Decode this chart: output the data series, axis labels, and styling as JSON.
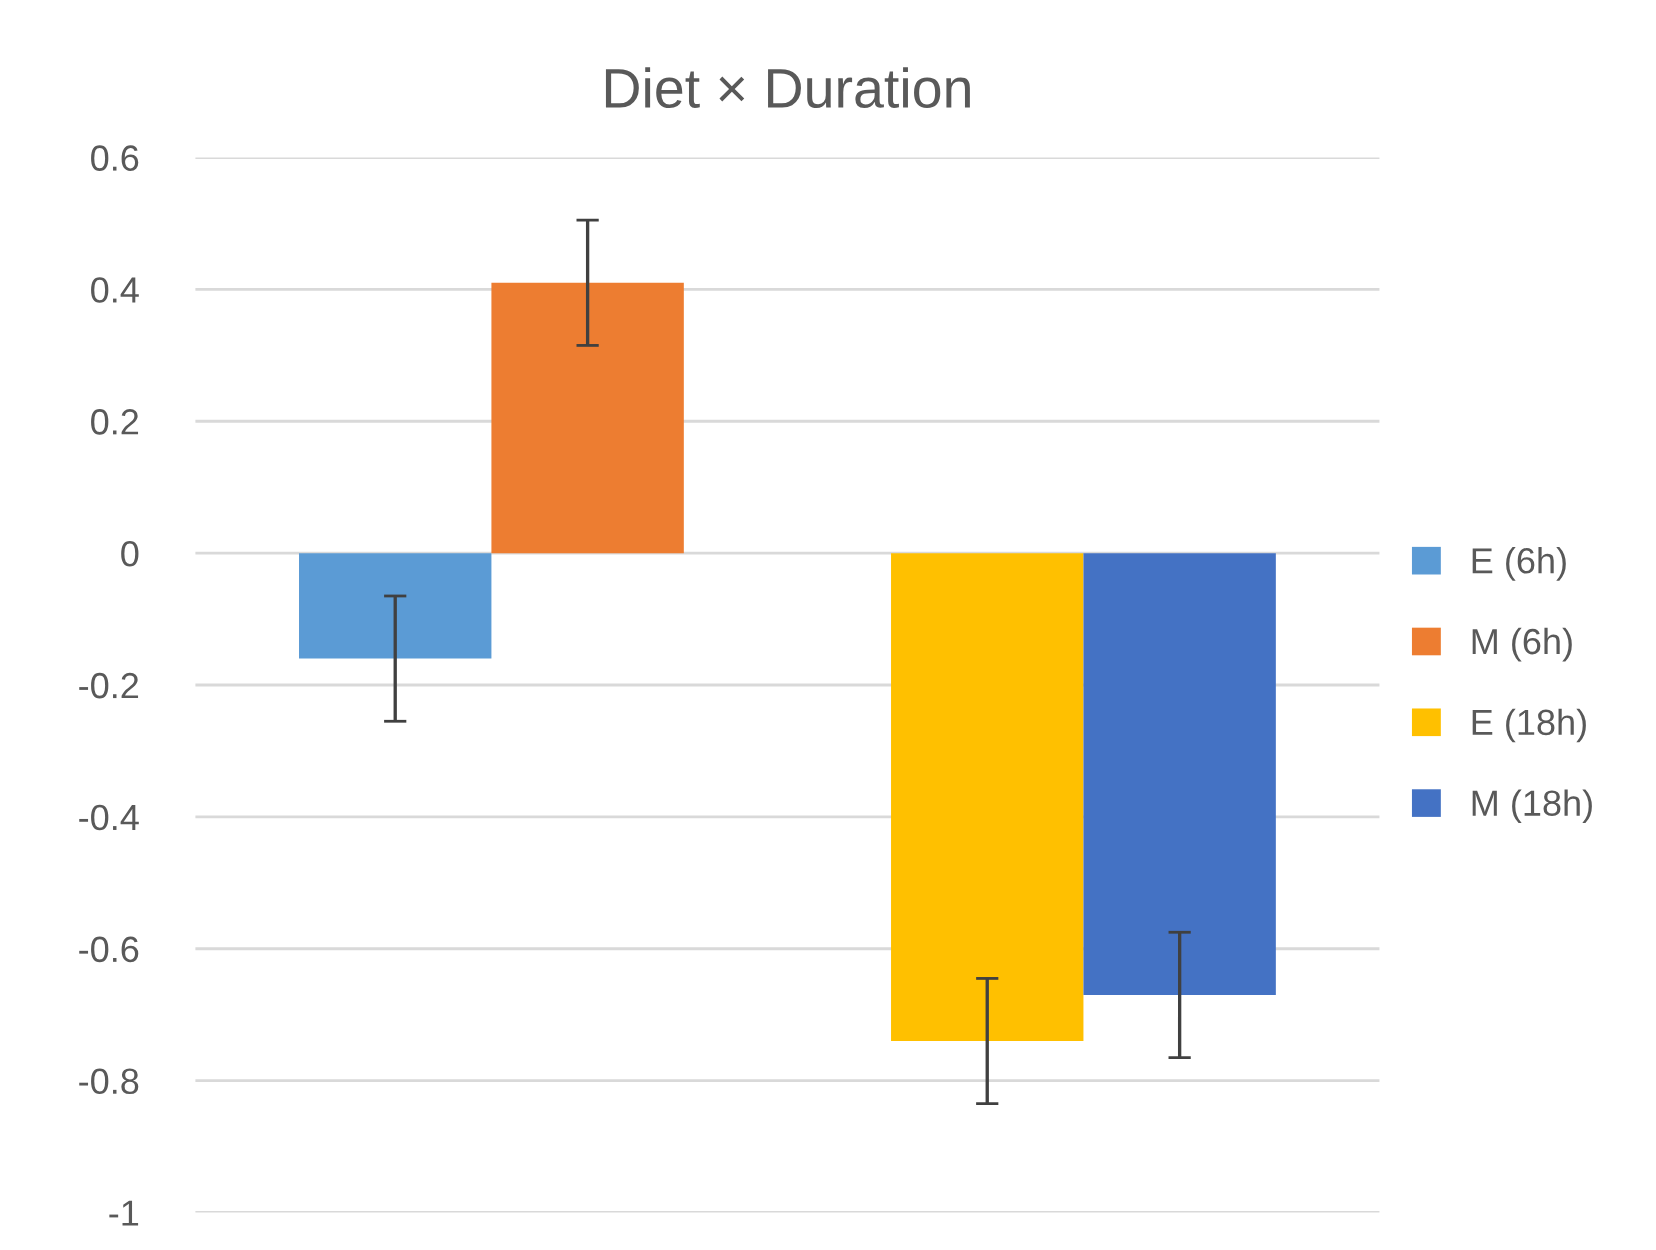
{
  "chart_data": {
    "type": "bar",
    "title": "Diet × Duration",
    "categories": [
      null,
      null
    ],
    "series": [
      {
        "name": "E (6h)",
        "color": "#5b9bd5",
        "values": [
          -0.16,
          null
        ],
        "errors": [
          0.095,
          null
        ]
      },
      {
        "name": "M (6h)",
        "color": "#ed7d31",
        "values": [
          0.41,
          null
        ],
        "errors": [
          0.095,
          null
        ]
      },
      {
        "name": "E (18h)",
        "color": "#ffc000",
        "values": [
          null,
          -0.74
        ],
        "errors": [
          null,
          0.095
        ]
      },
      {
        "name": "M (18h)",
        "color": "#4472c4",
        "values": [
          null,
          -0.67
        ],
        "errors": [
          null,
          0.095
        ]
      }
    ],
    "ylim": [
      -1,
      0.6
    ],
    "yticks": [
      {
        "value": -1,
        "label": "-1"
      },
      {
        "value": -0.8,
        "label": "-0.8"
      },
      {
        "value": -0.6,
        "label": "-0.6"
      },
      {
        "value": -0.4,
        "label": "-0.4"
      },
      {
        "value": -0.2,
        "label": "-0.2"
      },
      0,
      0.2,
      0.4,
      0.6
    ],
    "grid": "y",
    "legend": "right"
  }
}
